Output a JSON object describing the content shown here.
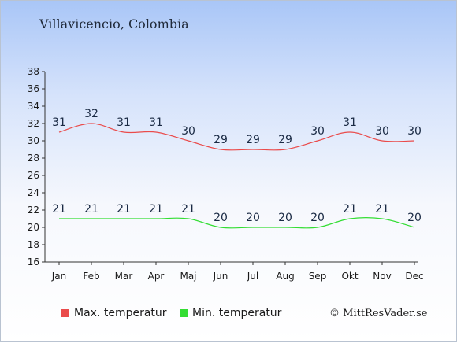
{
  "page": {
    "title": "Villavicencio, Colombia",
    "credit": "© MittResVader.se"
  },
  "chart_data": {
    "type": "line",
    "title": "Villavicencio, Colombia",
    "xlabel": "",
    "ylabel": "",
    "categories": [
      "Jan",
      "Feb",
      "Mar",
      "Apr",
      "Maj",
      "Jun",
      "Jul",
      "Aug",
      "Sep",
      "Okt",
      "Nov",
      "Dec"
    ],
    "series": [
      {
        "name": "Max. temperatur",
        "color": "#ea4b4b",
        "values": [
          31,
          32,
          31,
          31,
          30,
          29,
          29,
          29,
          30,
          31,
          30,
          30
        ]
      },
      {
        "name": "Min. temperatur",
        "color": "#33dd33",
        "values": [
          21,
          21,
          21,
          21,
          21,
          20,
          20,
          20,
          20,
          21,
          21,
          20
        ]
      }
    ],
    "ylim": [
      16,
      38
    ],
    "yticks": [
      16,
      18,
      20,
      22,
      24,
      26,
      28,
      30,
      32,
      34,
      36,
      38
    ],
    "grid": false,
    "legend": "bottom"
  }
}
